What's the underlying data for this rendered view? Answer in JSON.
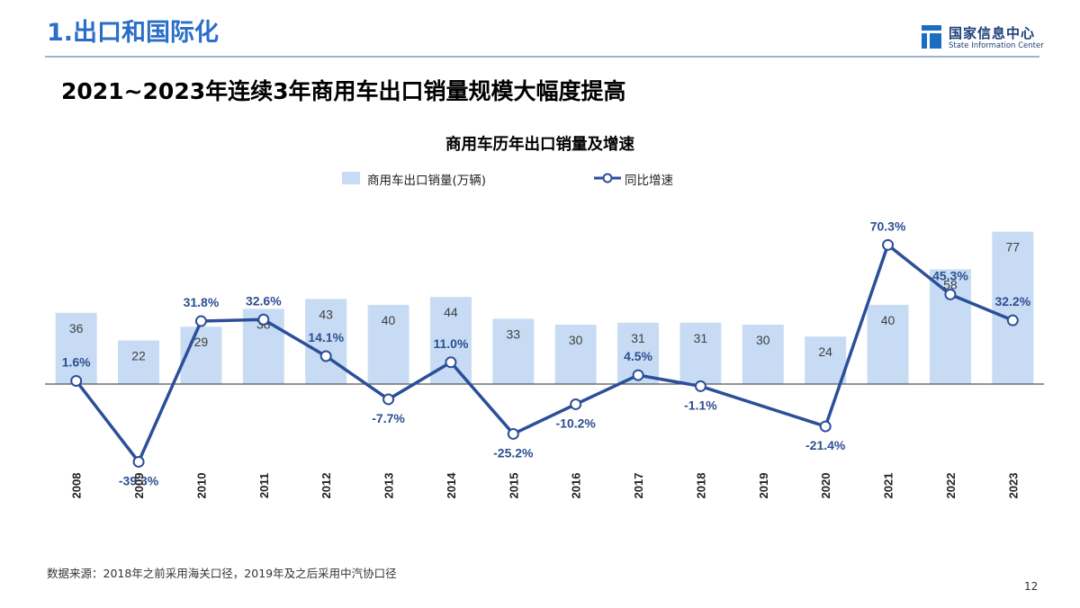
{
  "header": {
    "section_title": "1.出口和国际化",
    "logo_cn": "国家信息中心",
    "logo_en": "State Information Center",
    "headline": "2021~2023年连续3年商用车出口销量规模大幅度提高"
  },
  "chart_data": {
    "type": "bar",
    "title": "商用车历年出口销量及增速",
    "categories": [
      "2008",
      "2009",
      "2010",
      "2011",
      "2012",
      "2013",
      "2014",
      "2015",
      "2016",
      "2017",
      "2018",
      "2019",
      "2020",
      "2021",
      "2022",
      "2023"
    ],
    "series": [
      {
        "name": "商用车出口销量(万辆)",
        "type": "bar",
        "color": "#c7dcf4",
        "values": [
          36,
          22,
          29,
          38,
          43,
          40,
          44,
          33,
          30,
          31,
          31,
          30,
          24,
          40,
          58,
          77
        ],
        "labels": [
          "36",
          "22",
          "29",
          "38",
          "43",
          "40",
          "44",
          "33",
          "30",
          "31",
          "31",
          "30",
          "24",
          "40",
          "58",
          "77"
        ]
      },
      {
        "name": "同比增速",
        "type": "line",
        "color": "#2b4f98",
        "values": [
          1.6,
          -39.3,
          31.8,
          32.6,
          14.1,
          -7.7,
          11.0,
          -25.2,
          -10.2,
          4.5,
          -1.1,
          null,
          -21.4,
          70.3,
          45.3,
          32.2
        ],
        "labels": [
          "1.6%",
          "-39.3%",
          "31.8%",
          "32.6%",
          "14.1%",
          "-7.7%",
          "11.0%",
          "-25.2%",
          "-10.2%",
          "4.5%",
          "-1.1%",
          "",
          "-21.4%",
          "70.3%",
          "45.3%",
          "32.2%"
        ]
      }
    ],
    "legend_position": "top",
    "grid": false
  },
  "footer": {
    "source": "数据来源：2018年之前采用海关口径，2019年及之后采用中汽协口径",
    "page": "12"
  }
}
